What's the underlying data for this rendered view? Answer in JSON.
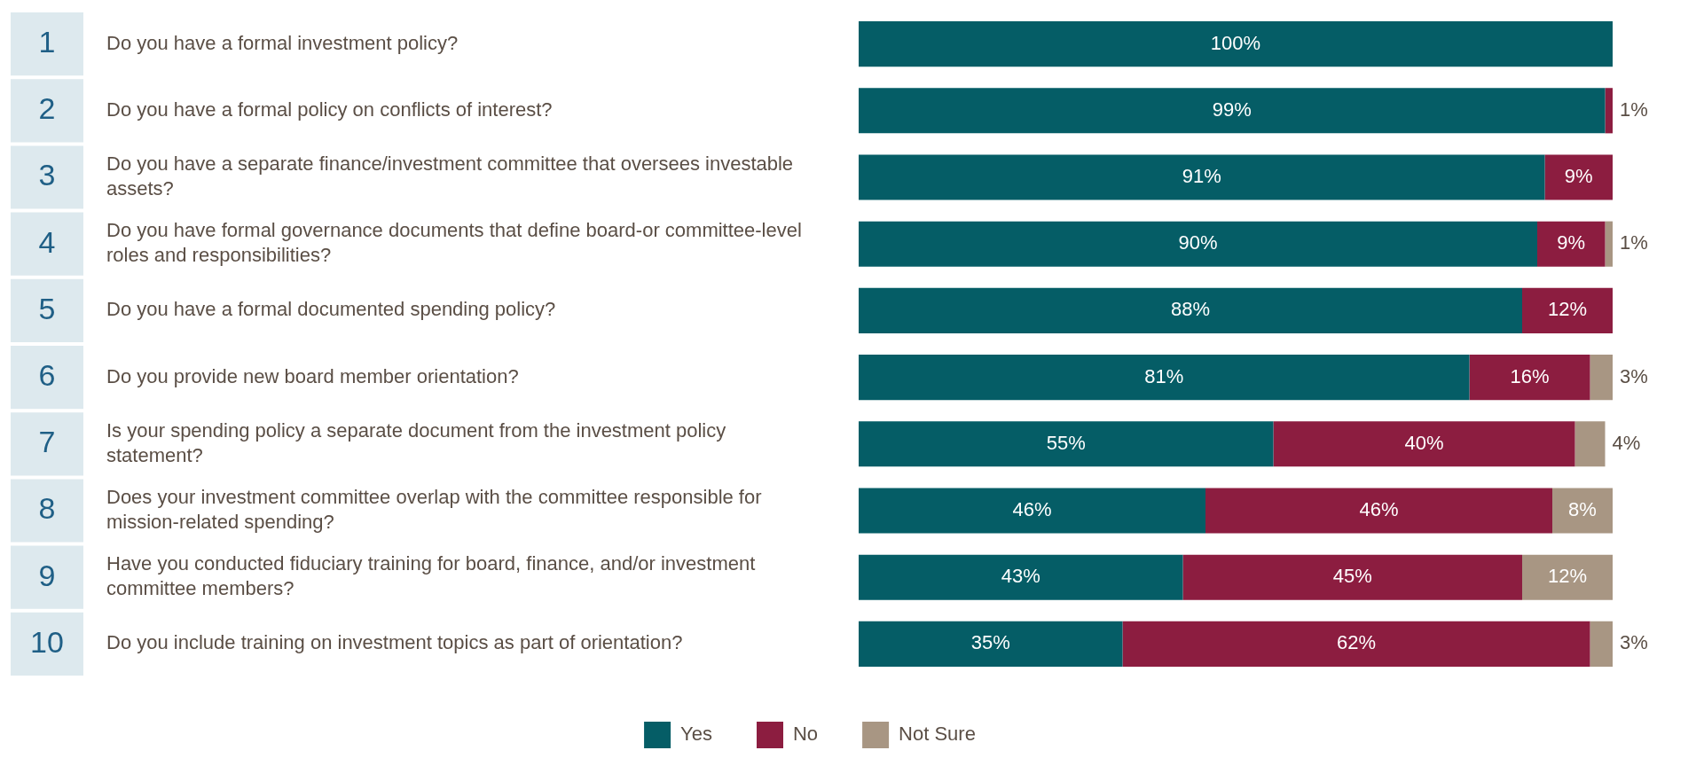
{
  "chart_data": {
    "type": "bar",
    "orientation": "horizontal",
    "stacked": true,
    "categories": [
      "1 Do you have a formal investment policy?",
      "2 Do you have a formal policy on conflicts of interest?",
      "3 Do you have a separate finance/investment committee that oversees investable assets?",
      "4 Do you have formal governance documents that define board-or committee-level roles and responsibilities?",
      "5 Do you have a formal documented spending policy?",
      "6 Do you provide new board member orientation?",
      "7 Is your spending policy a separate document from the investment policy statement?",
      "8 Does your investment committee overlap with the committee responsible for mission-related spending?",
      "9 Have you conducted fiduciary training for board, finance, and/or investment committee members?",
      "10 Do you include training on investment topics as part of orientation?"
    ],
    "series": [
      {
        "name": "Yes",
        "color": "#055d66",
        "values": [
          100,
          99,
          91,
          90,
          88,
          81,
          55,
          46,
          43,
          35
        ],
        "value_labels": [
          "100%",
          "99%",
          "91%",
          "90%",
          "88%",
          "81%",
          "55%",
          "46%",
          "43%",
          "35%"
        ]
      },
      {
        "name": "No",
        "color": "#8c1d40",
        "values": [
          null,
          1,
          9,
          9,
          12,
          16,
          40,
          46,
          45,
          62
        ],
        "value_labels": [
          null,
          "1%",
          "9%",
          "9%",
          "12%",
          "16%",
          "40%",
          "46%",
          "45%",
          "62%"
        ]
      },
      {
        "name": "Not Sure",
        "color": "#a89683",
        "values": [
          null,
          null,
          null,
          1,
          null,
          3,
          4,
          8,
          12,
          3
        ],
        "value_labels": [
          null,
          null,
          null,
          "1%",
          null,
          "3%",
          "4%",
          "8%",
          "12%",
          "3%"
        ]
      }
    ],
    "tick_labels": "y",
    "legend": "bottom"
  }
}
